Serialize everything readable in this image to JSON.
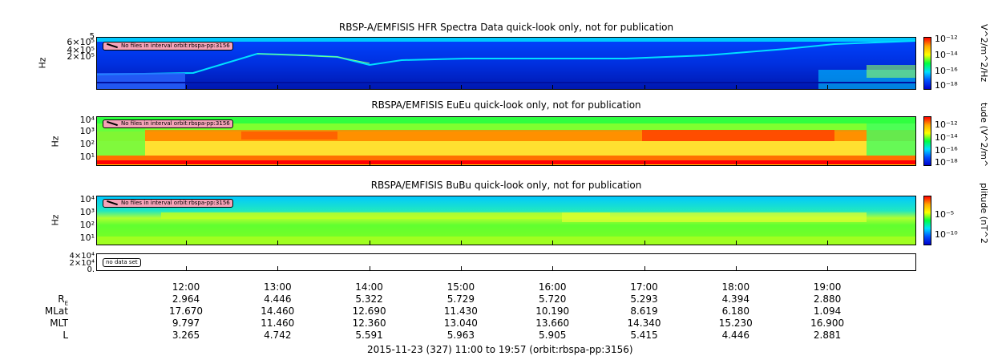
{
  "panels": [
    {
      "title": "RBSP-A/EMFISIS  HFR Spectra Data quick-look only, not for publication",
      "ylabel": "Hz",
      "yticks": [
        "6×10⁵",
        "4×10⁵",
        "2×10⁵"
      ],
      "ytop": "5",
      "note": "No files in interval orbit:rbspa-pp:3156",
      "colorbar": {
        "ticks": [
          "10⁻¹²",
          "10⁻¹⁴",
          "10⁻¹⁶",
          "10⁻¹⁸"
        ],
        "label": "V^2/m^2/Hz"
      }
    },
    {
      "title": "RBSPA/EMFISIS  EuEu quick-look only, not for publication",
      "ylabel": "Hz",
      "yticks": [
        "10⁴",
        "10³",
        "10²",
        "10¹"
      ],
      "note": "No files in interval orbit:rbspa-pp:3156",
      "colorbar": {
        "ticks": [
          "10⁻¹²",
          "10⁻¹⁴",
          "10⁻¹⁶",
          "10⁻¹⁸"
        ],
        "label": "tude (V^2/m^"
      }
    },
    {
      "title": "RBSPA/EMFISIS  BuBu quick-look only, not for publication",
      "ylabel": "Hz",
      "yticks": [
        "10⁴",
        "10³",
        "10²",
        "10¹"
      ],
      "note": "No files in interval orbit:rbspa-pp:3156",
      "colorbar": {
        "ticks": [
          "10⁻⁵",
          "10⁻¹⁰"
        ],
        "label": "plitude (nT^2"
      }
    },
    {
      "title": "",
      "ylabel": "",
      "yticks": [
        "4×10⁴",
        "2×10⁴",
        "0."
      ],
      "note": "no data set",
      "colorbar": null
    }
  ],
  "chart_data": {
    "type": "heatmap",
    "x_ticks": [
      "12:00",
      "13:00",
      "14:00",
      "15:00",
      "16:00",
      "17:00",
      "18:00",
      "19:00"
    ],
    "ephemeris": [
      {
        "label": "R",
        "sub": "E",
        "values": [
          "2.964",
          "4.446",
          "5.322",
          "5.729",
          "5.720",
          "5.293",
          "4.394",
          "2.880"
        ]
      },
      {
        "label": "MLat",
        "values": [
          "17.670",
          "14.460",
          "12.690",
          "11.430",
          "10.190",
          "8.619",
          "6.180",
          "1.094"
        ]
      },
      {
        "label": "MLT",
        "values": [
          "9.797",
          "11.460",
          "12.360",
          "13.040",
          "13.660",
          "14.340",
          "15.230",
          "16.900"
        ]
      },
      {
        "label": "L",
        "values": [
          "3.265",
          "4.742",
          "5.591",
          "5.963",
          "5.905",
          "5.415",
          "4.446",
          "2.881"
        ]
      }
    ],
    "footer": "2015-11-23 (327) 11:00 to 19:57 (orbit:rbspa-pp:3156)"
  }
}
